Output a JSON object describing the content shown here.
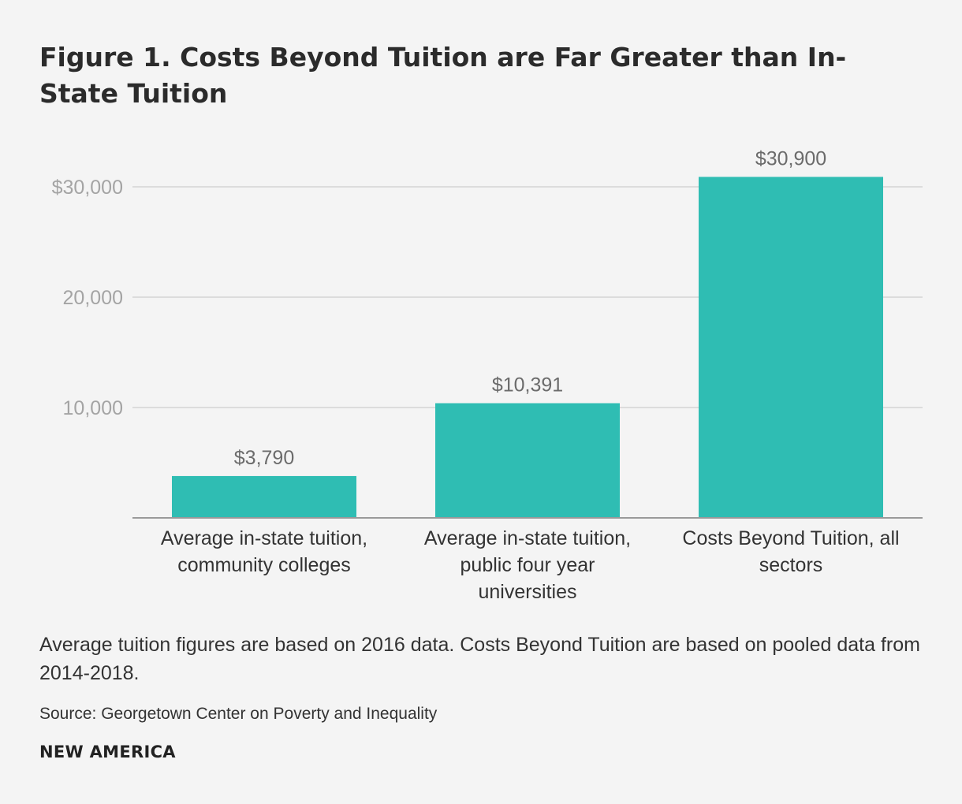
{
  "title": "Figure 1. Costs Beyond Tuition are Far Greater than In-State Tuition",
  "note": "Average tuition figures are based on 2016 data. Costs Beyond Tuition are based on pooled data from 2014-2018.",
  "source": "Source: Georgetown Center on Poverty and Inequality",
  "brand": "NEW AMERICA",
  "colors": {
    "bar": "#2fbdb3",
    "background": "#f4f4f4"
  },
  "chart_data": {
    "type": "bar",
    "title": "Figure 1. Costs Beyond Tuition are Far Greater than In-State Tuition",
    "xlabel": "",
    "ylabel": "",
    "ylim": [
      0,
      30000
    ],
    "grid": true,
    "yticks": [
      10000,
      20000,
      30000
    ],
    "ytick_labels": [
      "10,000",
      "20,000",
      "$30,000"
    ],
    "categories": [
      "Average in-state tuition, community colleges",
      "Average in-state tuition, public four year universities",
      "Costs Beyond Tuition, all sectors"
    ],
    "values": [
      3790,
      10391,
      30900
    ],
    "data_labels": [
      "$3,790",
      "$10,391",
      "$30,900"
    ]
  }
}
